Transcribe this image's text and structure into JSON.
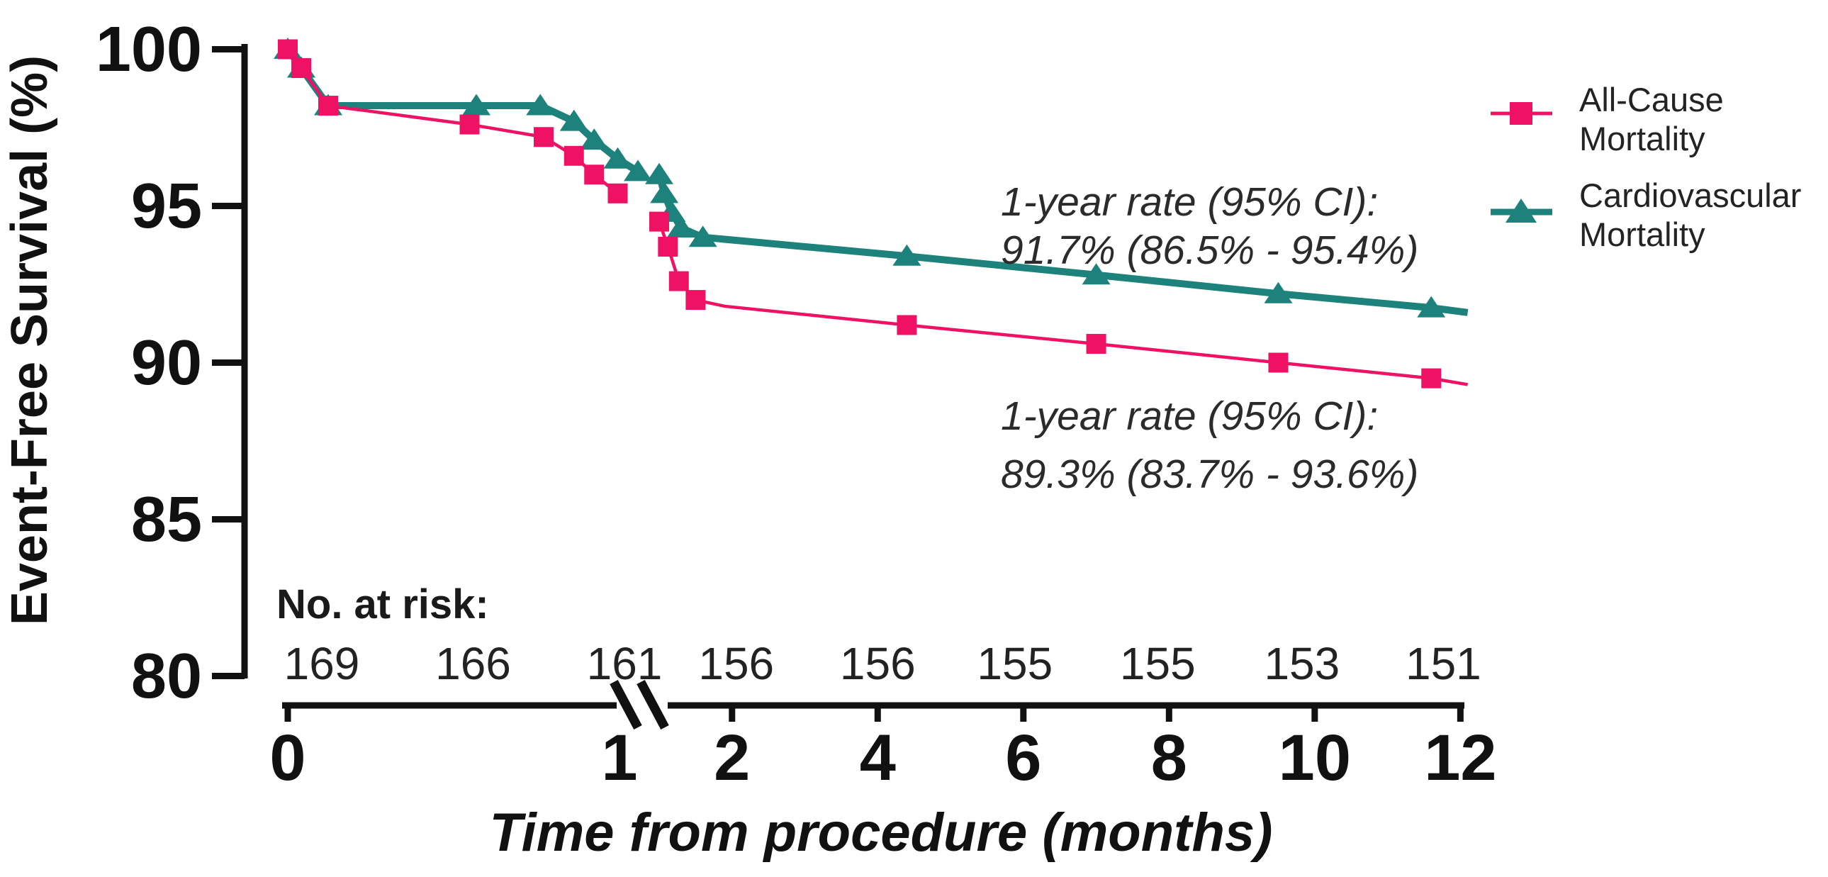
{
  "figure": {
    "kind": "kaplan-meier-survival-figure",
    "background": "#ffffff",
    "text_color": "#111111"
  },
  "chart_data": {
    "type": "line",
    "title": "",
    "xlabel": "Time from procedure (months)",
    "ylabel": "Event-Free Survival (%)",
    "x_tick_labels": [
      "0",
      "1",
      "2",
      "4",
      "6",
      "8",
      "10",
      "12"
    ],
    "x_tick_values": [
      0,
      1,
      2,
      4,
      6,
      8,
      10,
      12
    ],
    "y_tick_labels": [
      "100",
      "95",
      "90",
      "85",
      "80"
    ],
    "y_tick_values": [
      100,
      95,
      90,
      85,
      80
    ],
    "ylim": [
      80,
      100
    ],
    "xlim": [
      0,
      12
    ],
    "grid": false,
    "x_axis_break": {
      "between": [
        1,
        2
      ],
      "style": "double-backslash"
    },
    "legend_position": "top-right",
    "series": [
      {
        "name": "All-Cause Mortality",
        "legend_lines": [
          "All-Cause",
          "Mortality"
        ],
        "color": "#EE1164",
        "marker": "square",
        "line_width": "thin",
        "points_pre_break": [
          [
            0,
            100,
            1
          ],
          [
            0.04,
            99.4,
            1
          ],
          [
            0.12,
            98.2,
            1
          ],
          [
            0.54,
            97.6,
            1
          ],
          [
            0.76,
            97.2,
            1
          ],
          [
            0.85,
            96.6,
            1
          ],
          [
            0.91,
            96.0,
            1
          ],
          [
            0.98,
            95.4,
            1
          ]
        ],
        "points_post_break": [
          [
            1.0,
            94.5,
            1
          ],
          [
            1.12,
            93.7,
            1
          ],
          [
            1.27,
            92.6,
            1
          ],
          [
            1.5,
            92.0,
            1
          ],
          [
            1.9,
            91.8,
            0
          ],
          [
            4.4,
            91.2,
            1
          ],
          [
            7.0,
            90.6,
            1
          ],
          [
            9.5,
            90.0,
            1
          ],
          [
            11.6,
            89.5,
            1
          ],
          [
            12.1,
            89.3,
            0
          ]
        ],
        "one_year_rate": "89.3%",
        "one_year_ci": "83.7% - 93.6%"
      },
      {
        "name": "Cardiovascular Mortality",
        "legend_lines": [
          "Cardiovascular",
          "Mortality"
        ],
        "color": "#1C827B",
        "marker": "triangle",
        "line_width": "thick",
        "points_pre_break": [
          [
            0,
            100,
            1
          ],
          [
            0.04,
            99.4,
            1
          ],
          [
            0.12,
            98.2,
            1
          ],
          [
            0.56,
            98.2,
            1
          ],
          [
            0.75,
            98.2,
            1
          ],
          [
            0.85,
            97.7,
            1
          ],
          [
            0.91,
            97.1,
            1
          ],
          [
            0.98,
            96.5,
            1
          ],
          [
            1.04,
            96.1,
            1
          ]
        ],
        "points_post_break": [
          [
            1.0,
            96.0,
            1
          ],
          [
            1.07,
            95.4,
            1
          ],
          [
            1.17,
            94.8,
            1
          ],
          [
            1.3,
            94.3,
            1
          ],
          [
            1.6,
            94.0,
            1
          ],
          [
            4.4,
            93.4,
            1
          ],
          [
            7.0,
            92.8,
            1
          ],
          [
            9.5,
            92.2,
            1
          ],
          [
            11.6,
            91.75,
            1
          ],
          [
            12.1,
            91.6,
            0
          ]
        ],
        "one_year_rate": "91.7%",
        "one_year_ci": "86.5% - 95.4%"
      }
    ],
    "annotations": [
      {
        "series": "Cardiovascular Mortality",
        "lines": [
          "1-year rate (95% CI):",
          "91.7% (86.5% - 95.4%)"
        ]
      },
      {
        "series": "All-Cause Mortality",
        "lines": [
          "1-year rate (95% CI):",
          "89.3% (83.7% - 93.6%)"
        ]
      }
    ],
    "at_risk": {
      "label": "No. at risk:",
      "times": [
        0,
        0.5,
        1,
        2,
        4,
        6,
        8,
        10,
        12
      ],
      "counts": [
        "169",
        "166",
        "161",
        "156",
        "156",
        "155",
        "155",
        "153",
        "151"
      ]
    }
  }
}
